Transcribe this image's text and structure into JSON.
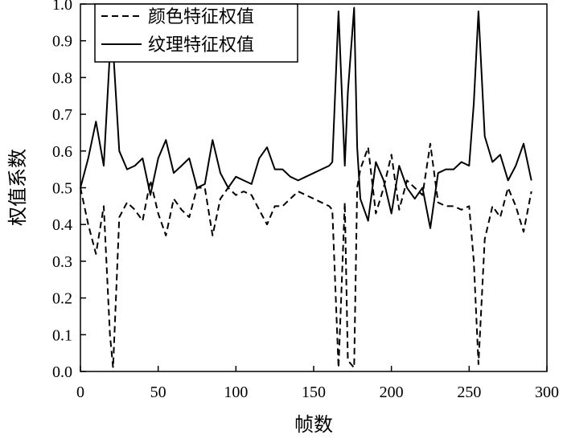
{
  "chart_data": {
    "type": "line",
    "xlabel": "帧数",
    "ylabel": "权值系数",
    "xlim": [
      0,
      300
    ],
    "ylim": [
      0.0,
      1.0
    ],
    "xticks": [
      "0",
      "50",
      "100",
      "150",
      "200",
      "250",
      "300"
    ],
    "yticks": [
      "0.0",
      "0.1",
      "0.2",
      "0.3",
      "0.4",
      "0.5",
      "0.6",
      "0.7",
      "0.8",
      "0.9",
      "1.0"
    ],
    "legend_position": "top-left",
    "grid": false,
    "series": [
      {
        "name": "颜色特征权值",
        "style": "dashed",
        "color": "#000000",
        "x": [
          0,
          5,
          10,
          15,
          19,
          21,
          25,
          30,
          35,
          40,
          45,
          50,
          55,
          60,
          65,
          70,
          75,
          80,
          85,
          90,
          95,
          100,
          105,
          110,
          115,
          120,
          125,
          130,
          135,
          140,
          145,
          150,
          155,
          160,
          162,
          166,
          170,
          172,
          176,
          178,
          180,
          185,
          190,
          195,
          200,
          205,
          210,
          215,
          220,
          225,
          230,
          235,
          240,
          245,
          250,
          253,
          256,
          260,
          265,
          270,
          275,
          280,
          285,
          290
        ],
        "y": [
          0.5,
          0.4,
          0.32,
          0.45,
          0.1,
          0.01,
          0.42,
          0.46,
          0.44,
          0.41,
          0.52,
          0.43,
          0.37,
          0.47,
          0.44,
          0.42,
          0.5,
          0.5,
          0.37,
          0.47,
          0.5,
          0.48,
          0.49,
          0.48,
          0.44,
          0.4,
          0.45,
          0.45,
          0.47,
          0.49,
          0.48,
          0.47,
          0.46,
          0.45,
          0.44,
          0.01,
          0.46,
          0.03,
          0.01,
          0.5,
          0.55,
          0.61,
          0.43,
          0.5,
          0.59,
          0.44,
          0.52,
          0.5,
          0.48,
          0.62,
          0.46,
          0.45,
          0.45,
          0.44,
          0.45,
          0.3,
          0.02,
          0.36,
          0.45,
          0.42,
          0.5,
          0.45,
          0.38,
          0.49
        ]
      },
      {
        "name": "纹理特征权值",
        "style": "solid",
        "color": "#000000",
        "x": [
          0,
          5,
          10,
          15,
          19,
          21,
          25,
          30,
          35,
          40,
          45,
          50,
          55,
          60,
          65,
          70,
          75,
          80,
          85,
          90,
          95,
          100,
          105,
          110,
          115,
          120,
          125,
          130,
          135,
          140,
          145,
          150,
          155,
          160,
          162,
          166,
          170,
          172,
          176,
          178,
          180,
          185,
          190,
          195,
          200,
          205,
          210,
          215,
          220,
          225,
          230,
          235,
          240,
          245,
          250,
          253,
          256,
          260,
          265,
          270,
          275,
          280,
          285,
          290
        ],
        "y": [
          0.5,
          0.58,
          0.68,
          0.56,
          0.87,
          0.88,
          0.6,
          0.55,
          0.56,
          0.58,
          0.48,
          0.58,
          0.63,
          0.54,
          0.56,
          0.58,
          0.5,
          0.51,
          0.63,
          0.54,
          0.5,
          0.53,
          0.52,
          0.51,
          0.58,
          0.61,
          0.55,
          0.55,
          0.53,
          0.52,
          0.53,
          0.54,
          0.55,
          0.56,
          0.57,
          0.98,
          0.56,
          0.76,
          0.99,
          0.61,
          0.47,
          0.41,
          0.57,
          0.52,
          0.43,
          0.56,
          0.5,
          0.47,
          0.5,
          0.39,
          0.54,
          0.55,
          0.55,
          0.57,
          0.56,
          0.73,
          0.98,
          0.64,
          0.57,
          0.59,
          0.52,
          0.56,
          0.62,
          0.52
        ]
      }
    ]
  }
}
